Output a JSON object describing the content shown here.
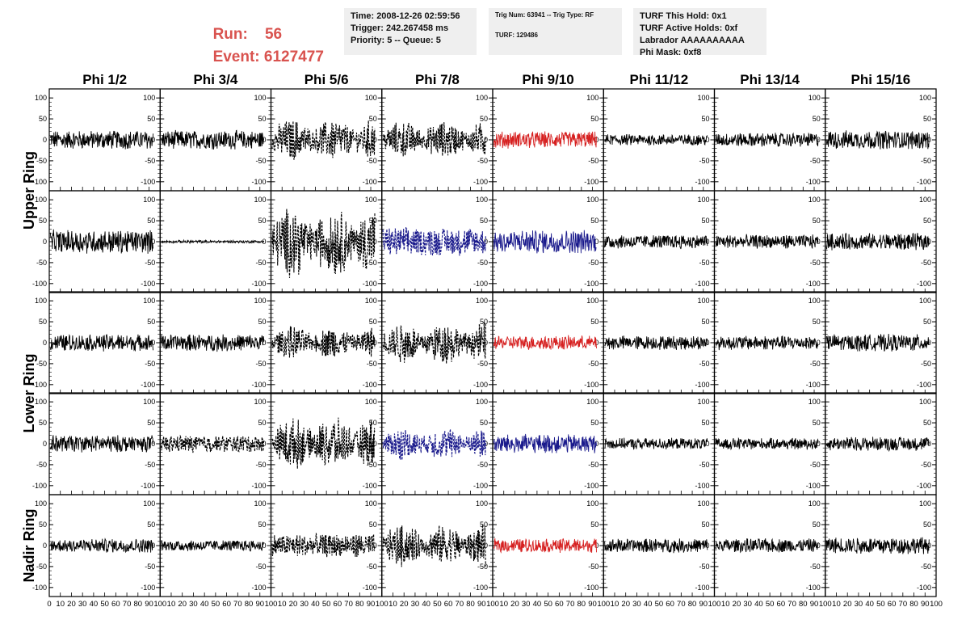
{
  "header": {
    "run_label": "Run:",
    "run_value": "56",
    "event_label": "Event:",
    "event_value": "6127477",
    "time_box": [
      "Time: 2008-12-26 02:59:56",
      "Trigger: 242.267458 ms",
      "Priority: 5 -- Queue: 5"
    ],
    "trig_box": [
      "Trig Num: 63941 -- Trig Type: RF",
      "TURF: 129486"
    ],
    "turf_box": [
      "TURF This Hold: 0x1",
      "TURF Active Holds: 0xf",
      "Labrador AAAAAAAAAA",
      "Phi Mask: 0xf8"
    ]
  },
  "chart_data": {
    "type": "line",
    "columns": [
      "Phi 1/2",
      "Phi 3/4",
      "Phi 5/6",
      "Phi 7/8",
      "Phi 9/10",
      "Phi 11/12",
      "Phi 13/14",
      "Phi 15/16"
    ],
    "rows": [
      "Upper Ring",
      "Upper Ring",
      "Lower Ring",
      "Lower Ring",
      "Nadir Ring"
    ],
    "row_labels": [
      "Upper Ring",
      "Lower Ring",
      "Nadir Ring"
    ],
    "xlim": [
      0,
      100
    ],
    "ylim": [
      -110,
      110
    ],
    "yticks": [
      -100,
      -50,
      0,
      50,
      100
    ],
    "xticks_bottom": [
      "0",
      "10",
      "20",
      "30",
      "40",
      "50",
      "60",
      "70",
      "80",
      "90",
      "100"
    ],
    "colors": {
      "black": "#000000",
      "red": "#d62020",
      "blue": "#1a1a8c"
    },
    "panel_style": [
      [
        "black-solid",
        "black-solid",
        "black-dashed",
        "black-dashed",
        "red-solid",
        "black-solid",
        "black-solid",
        "black-solid"
      ],
      [
        "black-solid",
        "black-solid",
        "black-dashed",
        "blue-dashed",
        "blue-solid",
        "black-solid",
        "black-solid",
        "black-solid"
      ],
      [
        "black-solid",
        "black-solid",
        "black-dashed",
        "black-dashed",
        "red-solid",
        "black-solid",
        "black-solid",
        "black-solid"
      ],
      [
        "black-solid",
        "black-dashed",
        "black-dashed",
        "blue-dashed",
        "blue-solid",
        "black-solid",
        "black-solid",
        "black-solid"
      ],
      [
        "black-solid",
        "black-solid",
        "black-dashed",
        "black-dashed",
        "red-solid",
        "black-solid",
        "black-solid",
        "black-solid"
      ]
    ],
    "panel_amplitude": [
      [
        20,
        20,
        45,
        40,
        18,
        12,
        15,
        20
      ],
      [
        25,
        3,
        75,
        30,
        25,
        15,
        15,
        18
      ],
      [
        18,
        18,
        35,
        45,
        15,
        15,
        15,
        18
      ],
      [
        18,
        18,
        55,
        35,
        20,
        12,
        12,
        15
      ],
      [
        15,
        12,
        25,
        45,
        15,
        15,
        15,
        18
      ]
    ],
    "waveform_note": "each panel shows a noise-like waveform over x 0-100"
  }
}
